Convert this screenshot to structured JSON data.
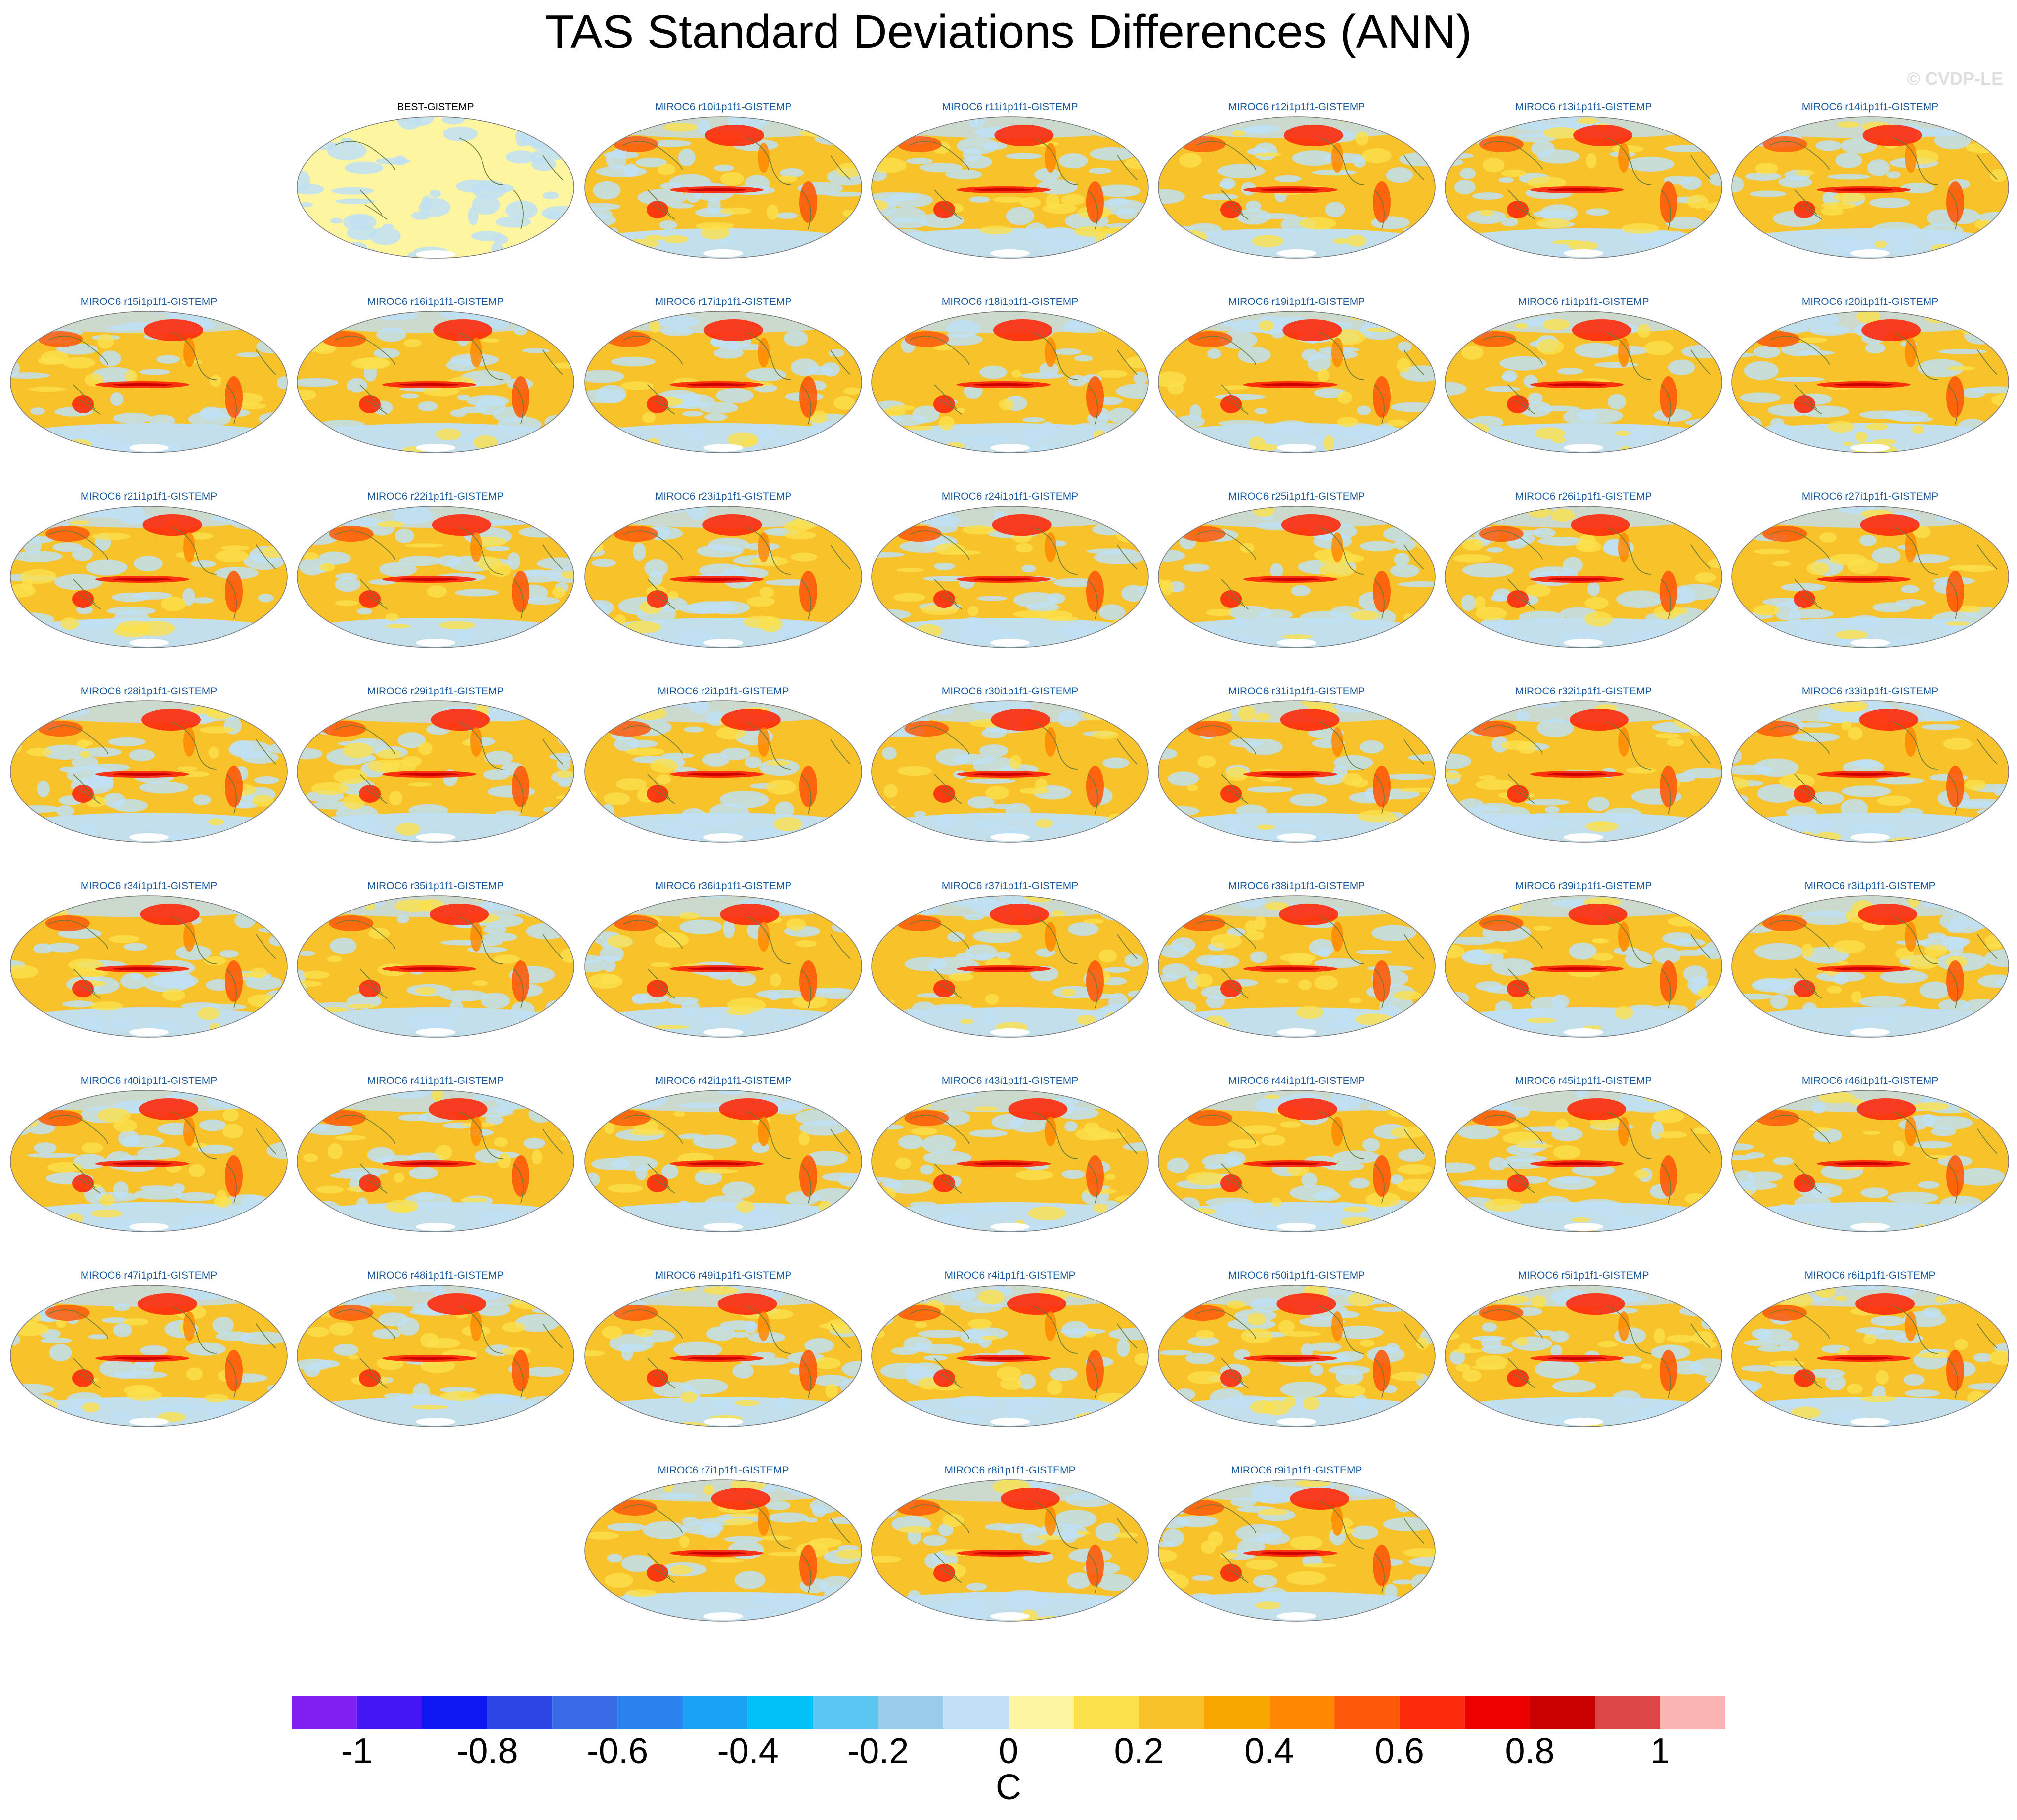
{
  "title": "TAS Standard Deviations Differences (ANN)",
  "watermark": "© CVDP-LE",
  "projection_style": "robinson-global",
  "map_colors": {
    "land": "#fdf5a0",
    "ocean_base": "#bfe0f5",
    "coast": "#6b7a3a",
    "outline": "#7a7a7a"
  },
  "panels": [
    {
      "label": "BEST-GISTEMP",
      "kind": "observed"
    },
    {
      "label": "MIROC6 r10i1p1f1-GISTEMP",
      "kind": "member"
    },
    {
      "label": "MIROC6 r11i1p1f1-GISTEMP",
      "kind": "member"
    },
    {
      "label": "MIROC6 r12i1p1f1-GISTEMP",
      "kind": "member"
    },
    {
      "label": "MIROC6 r13i1p1f1-GISTEMP",
      "kind": "member"
    },
    {
      "label": "MIROC6 r14i1p1f1-GISTEMP",
      "kind": "member"
    },
    {
      "label": "MIROC6 r15i1p1f1-GISTEMP",
      "kind": "member"
    },
    {
      "label": "MIROC6 r16i1p1f1-GISTEMP",
      "kind": "member"
    },
    {
      "label": "MIROC6 r17i1p1f1-GISTEMP",
      "kind": "member"
    },
    {
      "label": "MIROC6 r18i1p1f1-GISTEMP",
      "kind": "member"
    },
    {
      "label": "MIROC6 r19i1p1f1-GISTEMP",
      "kind": "member"
    },
    {
      "label": "MIROC6 r1i1p1f1-GISTEMP",
      "kind": "member"
    },
    {
      "label": "MIROC6 r20i1p1f1-GISTEMP",
      "kind": "member"
    },
    {
      "label": "MIROC6 r21i1p1f1-GISTEMP",
      "kind": "member"
    },
    {
      "label": "MIROC6 r22i1p1f1-GISTEMP",
      "kind": "member"
    },
    {
      "label": "MIROC6 r23i1p1f1-GISTEMP",
      "kind": "member"
    },
    {
      "label": "MIROC6 r24i1p1f1-GISTEMP",
      "kind": "member"
    },
    {
      "label": "MIROC6 r25i1p1f1-GISTEMP",
      "kind": "member"
    },
    {
      "label": "MIROC6 r26i1p1f1-GISTEMP",
      "kind": "member"
    },
    {
      "label": "MIROC6 r27i1p1f1-GISTEMP",
      "kind": "member"
    },
    {
      "label": "MIROC6 r28i1p1f1-GISTEMP",
      "kind": "member"
    },
    {
      "label": "MIROC6 r29i1p1f1-GISTEMP",
      "kind": "member"
    },
    {
      "label": "MIROC6 r2i1p1f1-GISTEMP",
      "kind": "member"
    },
    {
      "label": "MIROC6 r30i1p1f1-GISTEMP",
      "kind": "member"
    },
    {
      "label": "MIROC6 r31i1p1f1-GISTEMP",
      "kind": "member"
    },
    {
      "label": "MIROC6 r32i1p1f1-GISTEMP",
      "kind": "member"
    },
    {
      "label": "MIROC6 r33i1p1f1-GISTEMP",
      "kind": "member"
    },
    {
      "label": "MIROC6 r34i1p1f1-GISTEMP",
      "kind": "member"
    },
    {
      "label": "MIROC6 r35i1p1f1-GISTEMP",
      "kind": "member"
    },
    {
      "label": "MIROC6 r36i1p1f1-GISTEMP",
      "kind": "member"
    },
    {
      "label": "MIROC6 r37i1p1f1-GISTEMP",
      "kind": "member"
    },
    {
      "label": "MIROC6 r38i1p1f1-GISTEMP",
      "kind": "member"
    },
    {
      "label": "MIROC6 r39i1p1f1-GISTEMP",
      "kind": "member"
    },
    {
      "label": "MIROC6 r3i1p1f1-GISTEMP",
      "kind": "member"
    },
    {
      "label": "MIROC6 r40i1p1f1-GISTEMP",
      "kind": "member"
    },
    {
      "label": "MIROC6 r41i1p1f1-GISTEMP",
      "kind": "member"
    },
    {
      "label": "MIROC6 r42i1p1f1-GISTEMP",
      "kind": "member"
    },
    {
      "label": "MIROC6 r43i1p1f1-GISTEMP",
      "kind": "member"
    },
    {
      "label": "MIROC6 r44i1p1f1-GISTEMP",
      "kind": "member"
    },
    {
      "label": "MIROC6 r45i1p1f1-GISTEMP",
      "kind": "member"
    },
    {
      "label": "MIROC6 r46i1p1f1-GISTEMP",
      "kind": "member"
    },
    {
      "label": "MIROC6 r47i1p1f1-GISTEMP",
      "kind": "member"
    },
    {
      "label": "MIROC6 r48i1p1f1-GISTEMP",
      "kind": "member"
    },
    {
      "label": "MIROC6 r49i1p1f1-GISTEMP",
      "kind": "member"
    },
    {
      "label": "MIROC6 r4i1p1f1-GISTEMP",
      "kind": "member"
    },
    {
      "label": "MIROC6 r50i1p1f1-GISTEMP",
      "kind": "member"
    },
    {
      "label": "MIROC6 r5i1p1f1-GISTEMP",
      "kind": "member"
    },
    {
      "label": "MIROC6 r6i1p1f1-GISTEMP",
      "kind": "member"
    },
    {
      "label": "MIROC6 r7i1p1f1-GISTEMP",
      "kind": "member"
    },
    {
      "label": "MIROC6 r8i1p1f1-GISTEMP",
      "kind": "member"
    },
    {
      "label": "MIROC6 r9i1p1f1-GISTEMP",
      "kind": "member"
    }
  ],
  "colorbar": {
    "unit": "C",
    "boundaries": [
      -1.1,
      -1.0,
      -0.9,
      -0.8,
      -0.7,
      -0.6,
      -0.5,
      -0.4,
      -0.3,
      -0.2,
      -0.1,
      0.0,
      0.1,
      0.2,
      0.3,
      0.4,
      0.5,
      0.6,
      0.7,
      0.8,
      0.9,
      1.0,
      1.1
    ],
    "colors": [
      "#7f20ee",
      "#4416f2",
      "#0e16f2",
      "#2b46e4",
      "#3a6be6",
      "#2a82ef",
      "#1aa2f4",
      "#00c0f8",
      "#5cc6f2",
      "#9bcbeb",
      "#bfe0f5",
      "#fdf5a0",
      "#fbe14c",
      "#f7c22a",
      "#f7a700",
      "#ff8800",
      "#fd5a0a",
      "#fd2a0c",
      "#ed0000",
      "#c80000",
      "#dc4646",
      "#fbb4b4"
    ],
    "tick_values": [
      -1.0,
      -0.8,
      -0.6,
      -0.4,
      -0.2,
      0.0,
      0.2,
      0.4,
      0.6,
      0.8,
      1.0
    ],
    "tick_labels": [
      "-1",
      "-0.8",
      "-0.6",
      "-0.4",
      "-0.2",
      "0",
      "0.2",
      "0.4",
      "0.6",
      "0.8",
      "1"
    ]
  }
}
